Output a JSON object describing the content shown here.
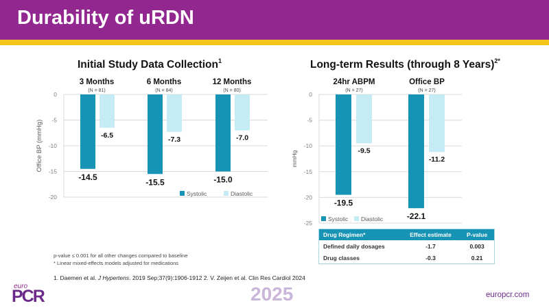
{
  "header": {
    "title": "Durability of uRDN",
    "brand_color": "#92278f",
    "accent_color": "#f5c518"
  },
  "colors": {
    "systolic": "#1794b5",
    "diastolic": "#c5ebf5"
  },
  "chart_data": [
    {
      "type": "bar",
      "title": "Initial Study Data Collection",
      "title_superscript": "1",
      "categories": [
        "3 Months",
        "6 Months",
        "12 Months"
      ],
      "category_sublabels": [
        "(N = 81)",
        "(N = 84)",
        "(N = 80)"
      ],
      "series": [
        {
          "name": "Systolic",
          "values": [
            -14.5,
            -15.5,
            -15.0
          ],
          "labels": [
            "-14.5",
            "-15.5",
            "-15.0"
          ]
        },
        {
          "name": "Diastolic",
          "values": [
            -6.5,
            -7.3,
            -7.0
          ],
          "labels": [
            "-6.5",
            "-7.3",
            "-7.0"
          ]
        }
      ],
      "xlabel": "",
      "ylabel": "Office BP (mmHg)",
      "ylim": [
        -20,
        0
      ],
      "yticks": [
        0,
        -5,
        -10,
        -15,
        -20
      ],
      "ytick_labels": [
        "0",
        "-5",
        "-10",
        "-15",
        "-20"
      ],
      "grid": true,
      "legend": {
        "placement": "bottom-right",
        "entries": [
          "Systolic",
          "Diastolic"
        ]
      }
    },
    {
      "type": "bar",
      "title": "Long-term Results (through 8 Years)",
      "title_superscript": "2*",
      "categories": [
        "24hr ABPM",
        "Office BP"
      ],
      "category_sublabels": [
        "(N = 27)",
        "(N = 27)"
      ],
      "series": [
        {
          "name": "Systolic",
          "values": [
            -19.5,
            -22.1
          ],
          "labels": [
            "-19.5",
            "-22.1"
          ]
        },
        {
          "name": "Diastolic",
          "values": [
            -9.5,
            -11.2
          ],
          "labels": [
            "-9.5",
            "-11.2"
          ]
        }
      ],
      "xlabel": "",
      "ylabel": "mmHg",
      "ylim": [
        -25,
        0
      ],
      "yticks": [
        0,
        -5,
        -10,
        -15,
        -20,
        -25
      ],
      "ytick_labels": [
        "0",
        "-5",
        "-10",
        "-15",
        "-20",
        "-25"
      ],
      "grid": true,
      "legend": {
        "placement": "bottom-left",
        "entries": [
          "Systolic",
          "Diastolic"
        ]
      }
    }
  ],
  "table": {
    "headers": [
      "Drug Regimen*",
      "Effect estimate",
      "P-value"
    ],
    "rows": [
      [
        "Defined daily dosages",
        "-1.7",
        "0.003"
      ],
      [
        "Drug classes",
        "-0.3",
        "0.21"
      ]
    ]
  },
  "footnotes": {
    "pvalue": "p-value  ≤ 0.001 for all other changes compared to baseline",
    "asterisk": "* Linear mixed-effects models adjusted for medications"
  },
  "reference": {
    "part1_prefix": "1. Daemen et al. ",
    "part1_journal": "J Hypertens",
    "part1_suffix": ". 2019 Sep;37(9):1906-1912  2. V. Zeijen et al. Clin Res Cardiol 2024"
  },
  "footer": {
    "logo_small": "euro",
    "logo_big": "PCR",
    "year": "2025",
    "website": "europcr.com"
  }
}
